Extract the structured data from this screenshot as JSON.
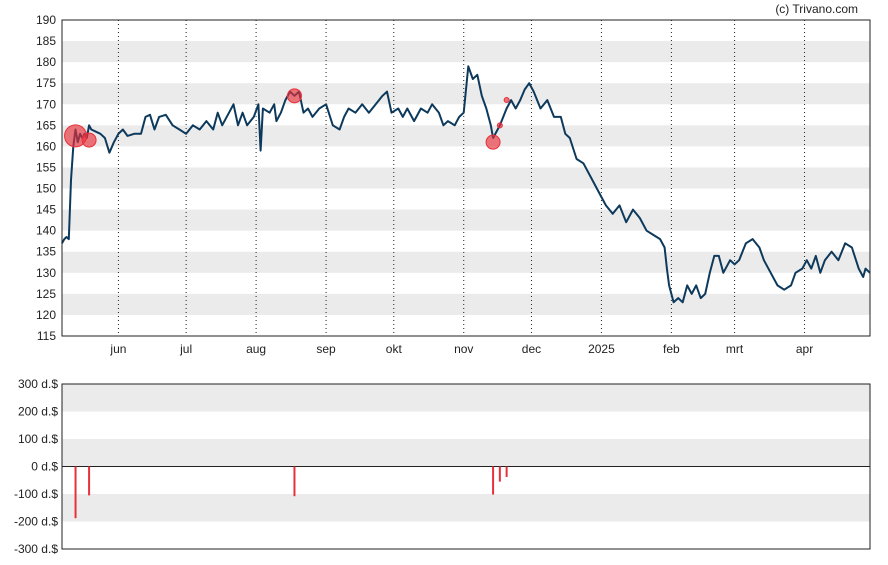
{
  "credit": "(c) Trivano.com",
  "colors": {
    "price_line": "#0d3a5c",
    "marker": "#e8303a",
    "band": "#ebebeb",
    "axis": "#222222",
    "grid": "#222222"
  },
  "chart_data": [
    {
      "type": "line",
      "ylim": [
        115,
        190
      ],
      "y_ticks": [
        "190",
        "185",
        "180",
        "175",
        "170",
        "165",
        "160",
        "155",
        "150",
        "145",
        "140",
        "135",
        "130",
        "125",
        "120",
        "115"
      ],
      "x_ticks": [
        "jun",
        "jul",
        "aug",
        "sep",
        "okt",
        "nov",
        "dec",
        "2025",
        "feb",
        "mrt",
        "apr"
      ],
      "x_domain": [
        "2024-05-07",
        "2025-04-30"
      ],
      "x_tick_dates": [
        "2024-06-01",
        "2024-07-01",
        "2024-08-01",
        "2024-09-01",
        "2024-10-01",
        "2024-11-01",
        "2024-12-01",
        "2025-01-01",
        "2025-02-01",
        "2025-03-01",
        "2025-04-01"
      ],
      "grid": true,
      "series": [
        {
          "values": [
            [
              "2024-05-07",
              137
            ],
            [
              "2024-05-08",
              138
            ],
            [
              "2024-05-09",
              138.5
            ],
            [
              "2024-05-10",
              138
            ],
            [
              "2024-05-11",
              152
            ],
            [
              "2024-05-12",
              160
            ],
            [
              "2024-05-13",
              164
            ],
            [
              "2024-05-14",
              161
            ],
            [
              "2024-05-15",
              163
            ],
            [
              "2024-05-16",
              162
            ],
            [
              "2024-05-17",
              163
            ],
            [
              "2024-05-18",
              162
            ],
            [
              "2024-05-19",
              165
            ],
            [
              "2024-05-20",
              164
            ],
            [
              "2024-05-22",
              163.5
            ],
            [
              "2024-05-24",
              163
            ],
            [
              "2024-05-26",
              162
            ],
            [
              "2024-05-28",
              158.5
            ],
            [
              "2024-05-30",
              161
            ],
            [
              "2024-06-01",
              163
            ],
            [
              "2024-06-03",
              164
            ],
            [
              "2024-06-05",
              162.5
            ],
            [
              "2024-06-08",
              163
            ],
            [
              "2024-06-11",
              163
            ],
            [
              "2024-06-13",
              167
            ],
            [
              "2024-06-15",
              167.5
            ],
            [
              "2024-06-17",
              164
            ],
            [
              "2024-06-19",
              167
            ],
            [
              "2024-06-22",
              167.5
            ],
            [
              "2024-06-25",
              165
            ],
            [
              "2024-06-28",
              164
            ],
            [
              "2024-07-01",
              163
            ],
            [
              "2024-07-04",
              165
            ],
            [
              "2024-07-07",
              164
            ],
            [
              "2024-07-10",
              166
            ],
            [
              "2024-07-13",
              164
            ],
            [
              "2024-07-15",
              168
            ],
            [
              "2024-07-17",
              165
            ],
            [
              "2024-07-20",
              168
            ],
            [
              "2024-07-22",
              170
            ],
            [
              "2024-07-24",
              165
            ],
            [
              "2024-07-26",
              168
            ],
            [
              "2024-07-28",
              165
            ],
            [
              "2024-07-31",
              167
            ],
            [
              "2024-08-02",
              170
            ],
            [
              "2024-08-03",
              159
            ],
            [
              "2024-08-04",
              169
            ],
            [
              "2024-08-07",
              168
            ],
            [
              "2024-08-09",
              170
            ],
            [
              "2024-08-10",
              166
            ],
            [
              "2024-08-12",
              168
            ],
            [
              "2024-08-14",
              171
            ],
            [
              "2024-08-16",
              173
            ],
            [
              "2024-08-18",
              172
            ],
            [
              "2024-08-20",
              173
            ],
            [
              "2024-08-22",
              168
            ],
            [
              "2024-08-24",
              169
            ],
            [
              "2024-08-26",
              167
            ],
            [
              "2024-08-29",
              169
            ],
            [
              "2024-09-01",
              170
            ],
            [
              "2024-09-04",
              165
            ],
            [
              "2024-09-07",
              164
            ],
            [
              "2024-09-09",
              167
            ],
            [
              "2024-09-11",
              169
            ],
            [
              "2024-09-14",
              168
            ],
            [
              "2024-09-17",
              170
            ],
            [
              "2024-09-20",
              168
            ],
            [
              "2024-09-23",
              170
            ],
            [
              "2024-09-26",
              172
            ],
            [
              "2024-09-28",
              173
            ],
            [
              "2024-09-30",
              168
            ],
            [
              "2024-10-03",
              169
            ],
            [
              "2024-10-05",
              167
            ],
            [
              "2024-10-07",
              169
            ],
            [
              "2024-10-10",
              166
            ],
            [
              "2024-10-13",
              169
            ],
            [
              "2024-10-16",
              168
            ],
            [
              "2024-10-18",
              170
            ],
            [
              "2024-10-21",
              168
            ],
            [
              "2024-10-23",
              165
            ],
            [
              "2024-10-25",
              166
            ],
            [
              "2024-10-28",
              165
            ],
            [
              "2024-10-30",
              167
            ],
            [
              "2024-11-01",
              168
            ],
            [
              "2024-11-03",
              179
            ],
            [
              "2024-11-05",
              176
            ],
            [
              "2024-11-07",
              177
            ],
            [
              "2024-11-09",
              172
            ],
            [
              "2024-11-11",
              169
            ],
            [
              "2024-11-13",
              165
            ],
            [
              "2024-11-14",
              162
            ],
            [
              "2024-11-17",
              165
            ],
            [
              "2024-11-20",
              169
            ],
            [
              "2024-11-22",
              171
            ],
            [
              "2024-11-24",
              169
            ],
            [
              "2024-11-26",
              171
            ],
            [
              "2024-11-28",
              173.5
            ],
            [
              "2024-11-30",
              175
            ],
            [
              "2024-12-02",
              173
            ],
            [
              "2024-12-05",
              169
            ],
            [
              "2024-12-08",
              171
            ],
            [
              "2024-12-11",
              167
            ],
            [
              "2024-12-14",
              167
            ],
            [
              "2024-12-16",
              163
            ],
            [
              "2024-12-18",
              162
            ],
            [
              "2024-12-21",
              157
            ],
            [
              "2024-12-24",
              156
            ],
            [
              "2024-12-28",
              152
            ],
            [
              "2025-01-01",
              148
            ],
            [
              "2025-01-03",
              146
            ],
            [
              "2025-01-06",
              144
            ],
            [
              "2025-01-09",
              146
            ],
            [
              "2025-01-12",
              142
            ],
            [
              "2025-01-15",
              145
            ],
            [
              "2025-01-18",
              143
            ],
            [
              "2025-01-21",
              140
            ],
            [
              "2025-01-24",
              139
            ],
            [
              "2025-01-27",
              138
            ],
            [
              "2025-01-29",
              136
            ],
            [
              "2025-01-30",
              131
            ],
            [
              "2025-01-31",
              127
            ],
            [
              "2025-02-02",
              123
            ],
            [
              "2025-02-04",
              124
            ],
            [
              "2025-02-06",
              123
            ],
            [
              "2025-02-08",
              127
            ],
            [
              "2025-02-10",
              125
            ],
            [
              "2025-02-12",
              127
            ],
            [
              "2025-02-14",
              124
            ],
            [
              "2025-02-16",
              125
            ],
            [
              "2025-02-18",
              130
            ],
            [
              "2025-02-20",
              134
            ],
            [
              "2025-02-22",
              134
            ],
            [
              "2025-02-24",
              130
            ],
            [
              "2025-02-27",
              133
            ],
            [
              "2025-03-01",
              132
            ],
            [
              "2025-03-03",
              133
            ],
            [
              "2025-03-06",
              137
            ],
            [
              "2025-03-09",
              138
            ],
            [
              "2025-03-12",
              136
            ],
            [
              "2025-03-14",
              133
            ],
            [
              "2025-03-17",
              130
            ],
            [
              "2025-03-20",
              127
            ],
            [
              "2025-03-23",
              126
            ],
            [
              "2025-03-26",
              127
            ],
            [
              "2025-03-28",
              130
            ],
            [
              "2025-03-31",
              131
            ],
            [
              "2025-04-02",
              133
            ],
            [
              "2025-04-04",
              131
            ],
            [
              "2025-04-06",
              134
            ],
            [
              "2025-04-08",
              130
            ],
            [
              "2025-04-10",
              133
            ],
            [
              "2025-04-13",
              135
            ],
            [
              "2025-04-16",
              133
            ],
            [
              "2025-04-19",
              137
            ],
            [
              "2025-04-22",
              136
            ],
            [
              "2025-04-25",
              131
            ],
            [
              "2025-04-27",
              129
            ],
            [
              "2025-04-28",
              131
            ],
            [
              "2025-04-30",
              130
            ]
          ]
        }
      ],
      "markers": [
        {
          "x": "2024-05-13",
          "y": 162.5,
          "size": "large"
        },
        {
          "x": "2024-05-19",
          "y": 161.5,
          "size": "medium"
        },
        {
          "x": "2024-08-18",
          "y": 172,
          "size": "medium"
        },
        {
          "x": "2024-11-14",
          "y": 161,
          "size": "medium"
        },
        {
          "x": "2024-11-17",
          "y": 165,
          "size": "small"
        },
        {
          "x": "2024-11-20",
          "y": 171,
          "size": "small"
        }
      ]
    },
    {
      "type": "bar",
      "ylim": [
        -300,
        300
      ],
      "y_ticks": [
        "300 d.$",
        "200 d.$",
        "100 d.$",
        "0 d.$",
        "-100 d.$",
        "-200 d.$",
        "-300 d.$"
      ],
      "grid": true,
      "bars": [
        {
          "x": "2024-05-13",
          "value": -188
        },
        {
          "x": "2024-05-19",
          "value": -105
        },
        {
          "x": "2024-08-18",
          "value": -108
        },
        {
          "x": "2024-11-14",
          "value": -102
        },
        {
          "x": "2024-11-17",
          "value": -55
        },
        {
          "x": "2024-11-20",
          "value": -38
        }
      ]
    }
  ]
}
